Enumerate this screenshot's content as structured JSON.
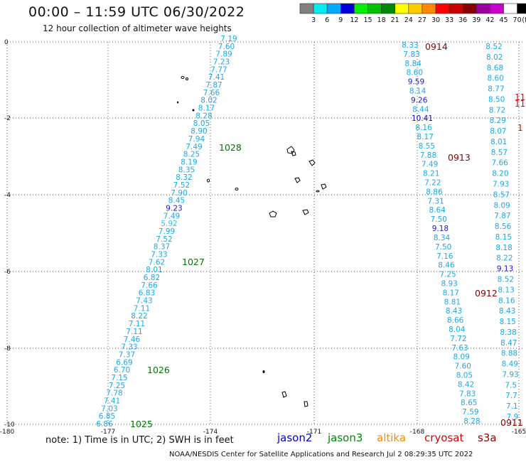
{
  "header": {
    "title": "00:00 – 11:59 UTC 06/30/2022",
    "subtitle": "12 hour collection of altimeter wave heights"
  },
  "legend": {
    "colors": [
      "#808080",
      "#00eeee",
      "#00aaff",
      "#0000dd",
      "#00ee00",
      "#00c000",
      "#008800",
      "#ffff00",
      "#ffcc00",
      "#ff8800",
      "#ff0000",
      "#cc0000",
      "#880000",
      "#990099",
      "#cc00cc",
      "#ffffff",
      "#000000"
    ],
    "labels": [
      "3",
      "6",
      "9",
      "12",
      "15",
      "18",
      "21",
      "24",
      "27",
      "30",
      "33",
      "36",
      "39",
      "42",
      "45",
      "70"
    ],
    "unit": "(ft)"
  },
  "axes": {
    "x_ticks": [
      "-180",
      "-177",
      "-174",
      "-171",
      "-168",
      "-165"
    ],
    "y_ticks": [
      "0",
      "-2",
      "-4",
      "-6",
      "-8",
      "-10"
    ]
  },
  "tracks": [
    {
      "name": "track-left",
      "color": "#1aa8e8",
      "values": [
        "7.19",
        "7.60",
        "7.89",
        "7.23",
        "7.77",
        "7.41",
        "7.87",
        "7.66",
        "8.02",
        "8.17",
        "8.28",
        "8.05",
        "8.90",
        "7.94",
        "7.49",
        "8.25",
        "8.19",
        "8.35",
        "8.32",
        "7.52",
        "7.90",
        "8.45",
        "9.23",
        "7.49",
        "5.92",
        "7.99",
        "7.52",
        "8.37",
        "7.33",
        "7.62",
        "8.01",
        "6.82",
        "7.66",
        "6.83",
        "7.43",
        "7.11",
        "8.22",
        "7.11",
        "7.11",
        "7.46",
        "7.33",
        "7.37",
        "6.69",
        "6.70",
        "7.15",
        "7.25",
        "7.78",
        "7.41",
        "7.03",
        "6.85",
        "6.86"
      ]
    },
    {
      "name": "track-middle",
      "color": "#1aa8e8",
      "values": [
        "8.33",
        "7.83",
        "8.84",
        "8.60",
        "9.59",
        "8.14",
        "9.26",
        "8.44",
        "10.41",
        "8.16",
        "8.17",
        "8.55",
        "7.88",
        "7.49",
        "8.21",
        "7.22",
        "8.86",
        "7.31",
        "8.64",
        "7.50",
        "9.18",
        "8.34",
        "7.50",
        "7.16",
        "8.46",
        "7.25",
        "8.93",
        "8.17",
        "8.81",
        "8.43",
        "8.66",
        "8.04",
        "7.72",
        "7.63",
        "8.09",
        "7.60",
        "8.05",
        "8.42",
        "7.83",
        "8.65",
        "7.59",
        "8.28"
      ]
    },
    {
      "name": "track-right",
      "color": "#1aa8e8",
      "values": [
        "8.52",
        "8.02",
        "8.68",
        "8.60",
        "8.77",
        "8.50",
        "8.72",
        "8.29",
        "8.07",
        "8.01",
        "8.57",
        "7.66",
        "8.20",
        "7.93",
        "8.57",
        "8.09",
        "7.87",
        "8.56",
        "8.15",
        "8.18",
        "8.22",
        "9.13",
        "8.52",
        "8.13",
        "8.16",
        "8.43",
        "8.15",
        "8.38",
        "8.47",
        "8.88",
        "8.49",
        "7.93",
        "7.5",
        "7.7",
        "7.1",
        "7.9"
      ]
    }
  ],
  "time_labels": [
    {
      "text": "0914",
      "color": "#8b0000"
    },
    {
      "text": "1028",
      "color": "#007700"
    },
    {
      "text": "0913",
      "color": "#8b0000"
    },
    {
      "text": "1027",
      "color": "#007700"
    },
    {
      "text": "0912",
      "color": "#8b0000"
    },
    {
      "text": "1026",
      "color": "#007700"
    },
    {
      "text": "1025",
      "color": "#007700"
    },
    {
      "text": "0911",
      "color": "#8b0000"
    }
  ],
  "edge_labels": [
    "11",
    "1",
    "11"
  ],
  "footer": {
    "note": "note: 1) Time is in UTC; 2) SWH is in feet",
    "satellites": [
      {
        "name": "jason2",
        "color": "#0000cc"
      },
      {
        "name": "jason3",
        "color": "#008800"
      },
      {
        "name": "altika",
        "color": "#ff8800"
      },
      {
        "name": "cryosat",
        "color": "#dd0000"
      },
      {
        "name": "s3a",
        "color": "#990000"
      }
    ],
    "credit": "NOAA/NESDIS Center for Satellite Applications and Research   Jul  2 08:29:35 UTC 2022"
  }
}
